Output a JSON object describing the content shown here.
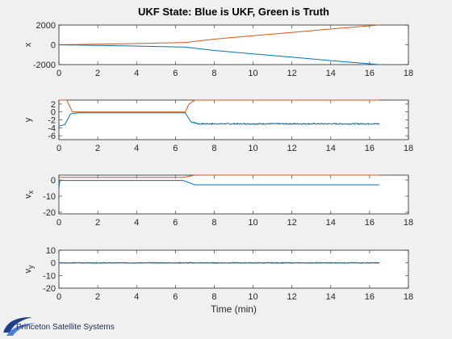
{
  "chart_data": [
    {
      "type": "line",
      "title": "UKF State: Blue is UKF, Green is Truth",
      "ylabel": "x",
      "xlim": [
        0,
        18
      ],
      "ylim": [
        -2000,
        2000
      ],
      "x_ticks": [
        "0",
        "2",
        "4",
        "6",
        "8",
        "10",
        "12",
        "14",
        "16",
        "18"
      ],
      "y_ticks": [
        "2000",
        "0",
        "-2000"
      ],
      "series": [
        {
          "color": "#d95319",
          "x": [
            0,
            2,
            4,
            6.5,
            8,
            10,
            12,
            14,
            16.5
          ],
          "y": [
            0,
            60,
            130,
            230,
            570,
            920,
            1250,
            1600,
            2000
          ]
        },
        {
          "color": "#0072bd",
          "x": [
            0,
            2,
            4,
            6.5,
            8,
            10,
            12,
            14,
            16.5
          ],
          "y": [
            0,
            -60,
            -130,
            -230,
            -570,
            -920,
            -1250,
            -1600,
            -2000
          ]
        }
      ]
    },
    {
      "type": "line",
      "ylabel": "y",
      "xlim": [
        0,
        18
      ],
      "ylim": [
        -7,
        3
      ],
      "x_ticks": [
        "0",
        "2",
        "4",
        "6",
        "8",
        "10",
        "12",
        "14",
        "16",
        "18"
      ],
      "y_ticks": [
        "2",
        "0",
        "-2",
        "-4",
        "-6"
      ],
      "series": [
        {
          "color": "#d95319",
          "x": [
            0,
            0.4,
            0.7,
            1.0,
            6.5,
            6.7,
            7.0,
            16.5
          ],
          "y": [
            3,
            3,
            0,
            0,
            0,
            2,
            3,
            3
          ]
        },
        {
          "color": "#0072bd",
          "x": [
            0,
            0.3,
            0.6,
            1.0,
            6.5,
            6.8,
            7.2,
            16.5
          ],
          "y": [
            -3.6,
            -3.2,
            -0.5,
            -0.2,
            -0.2,
            -2.5,
            -3.0,
            -3.0
          ],
          "noise_from": 6.8,
          "noise": 0.15
        }
      ]
    },
    {
      "type": "line",
      "ylabel": "v_x",
      "xlim": [
        0,
        18
      ],
      "ylim": [
        -21,
        3
      ],
      "x_ticks": [
        "0",
        "2",
        "4",
        "6",
        "8",
        "10",
        "12",
        "14",
        "16",
        "18"
      ],
      "y_ticks": [
        "0",
        "-10",
        "-20"
      ],
      "series": [
        {
          "color": "#d95319",
          "x": [
            0,
            6.4,
            7.0,
            16.5
          ],
          "y": [
            1.6,
            1.6,
            3,
            3
          ]
        },
        {
          "color": "#0072bd",
          "x": [
            0,
            0.05,
            6.4,
            7.0,
            16.5
          ],
          "y": [
            -5,
            -0.3,
            -0.3,
            -3,
            -3
          ]
        }
      ]
    },
    {
      "type": "line",
      "ylabel": "v_y",
      "xlabel": "Time (min)",
      "xlim": [
        0,
        18
      ],
      "ylim": [
        -20,
        10
      ],
      "x_ticks": [
        "0",
        "2",
        "4",
        "6",
        "8",
        "10",
        "12",
        "14",
        "16",
        "18"
      ],
      "y_ticks": [
        "10",
        "0",
        "-10",
        "-20"
      ],
      "series": [
        {
          "color": "#d95319",
          "x": [
            0,
            16.5
          ],
          "y": [
            0,
            0
          ]
        },
        {
          "color": "#0072bd",
          "x": [
            0,
            16.5
          ],
          "y": [
            0,
            0
          ],
          "noise_from": 0,
          "noise": 0.35
        }
      ]
    }
  ],
  "footer": {
    "company": "Princeton Satellite Systems"
  }
}
